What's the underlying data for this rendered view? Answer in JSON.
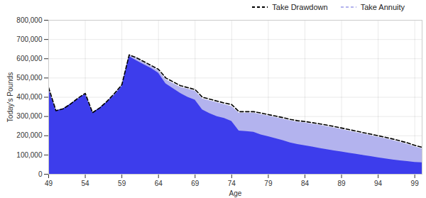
{
  "chart_data": {
    "type": "area",
    "x_label": "Age",
    "y_label": "Today's Pounds",
    "x": [
      49,
      50,
      51,
      52,
      53,
      54,
      55,
      56,
      57,
      58,
      59,
      60,
      61,
      62,
      63,
      64,
      65,
      66,
      67,
      68,
      69,
      70,
      71,
      72,
      73,
      74,
      75,
      76,
      77,
      78,
      79,
      80,
      81,
      82,
      83,
      84,
      85,
      86,
      87,
      88,
      89,
      90,
      91,
      92,
      93,
      94,
      95,
      96,
      97,
      98,
      99,
      100
    ],
    "series": [
      {
        "color": "#b3b3ee",
        "type": "area",
        "values": [
          440000,
          330000,
          340000,
          365000,
          390000,
          415000,
          320000,
          345000,
          375000,
          410000,
          455000,
          612000,
          590000,
          570000,
          550000,
          525000,
          470000,
          445000,
          420000,
          400000,
          385000,
          335000,
          315000,
          300000,
          290000,
          275000,
          225000,
          222000,
          218000,
          205000,
          195000,
          185000,
          175000,
          163000,
          155000,
          148000,
          142000,
          135000,
          128000,
          122000,
          116000,
          110000,
          104000,
          98000,
          92000,
          86000,
          80000,
          75000,
          70000,
          66000,
          62000,
          60000
        ]
      },
      {
        "name": "Take Drawdown",
        "color": "#000000",
        "type": "line",
        "line_style": "dashed",
        "values": [
          450000,
          330000,
          340000,
          365000,
          395000,
          420000,
          320000,
          345000,
          380000,
          420000,
          465000,
          620000,
          605000,
          585000,
          565000,
          545000,
          500000,
          480000,
          460000,
          450000,
          440000,
          400000,
          390000,
          380000,
          370000,
          362000,
          325000,
          325000,
          325000,
          318000,
          310000,
          302000,
          294000,
          285000,
          278000,
          274000,
          268000,
          262000,
          255000,
          248000,
          240000,
          232000,
          224000,
          216000,
          208000,
          200000,
          192000,
          183000,
          173000,
          163000,
          150000,
          140000
        ]
      },
      {
        "name": "Take Annuity",
        "color": "#b3b3ee",
        "type": "area",
        "values": [
          448000,
          330000,
          340000,
          365000,
          393000,
          418000,
          320000,
          345000,
          378000,
          418000,
          463000,
          618000,
          600000,
          580000,
          560000,
          538000,
          492000,
          472000,
          452000,
          442000,
          432000,
          392000,
          382000,
          372000,
          362000,
          352000,
          318000,
          318000,
          318000,
          311000,
          303000,
          295000,
          287000,
          278000,
          271000,
          267000,
          261000,
          255000,
          248000,
          241000,
          233000,
          225000,
          217000,
          209000,
          201000,
          193000,
          185000,
          176000,
          166000,
          156000,
          143000,
          133000
        ]
      }
    ],
    "xlim": [
      49,
      100
    ],
    "xticks": [
      49,
      54,
      59,
      64,
      69,
      74,
      79,
      84,
      89,
      94,
      99
    ],
    "ylim": [
      0,
      800000
    ],
    "yticks": [
      {
        "value": 0,
        "label": "0"
      },
      {
        "value": 100000,
        "label": "100,000"
      },
      {
        "value": 200000,
        "label": "200,000"
      },
      {
        "value": 300000,
        "label": "300,000"
      },
      {
        "value": 400000,
        "label": "400,000"
      },
      {
        "value": 500000,
        "label": "500,000"
      },
      {
        "value": 600000,
        "label": "600,000"
      },
      {
        "value": 700000,
        "label": "700,000"
      },
      {
        "value": 800000,
        "label": "800,000"
      }
    ],
    "grid": true,
    "legend": "top-right"
  }
}
